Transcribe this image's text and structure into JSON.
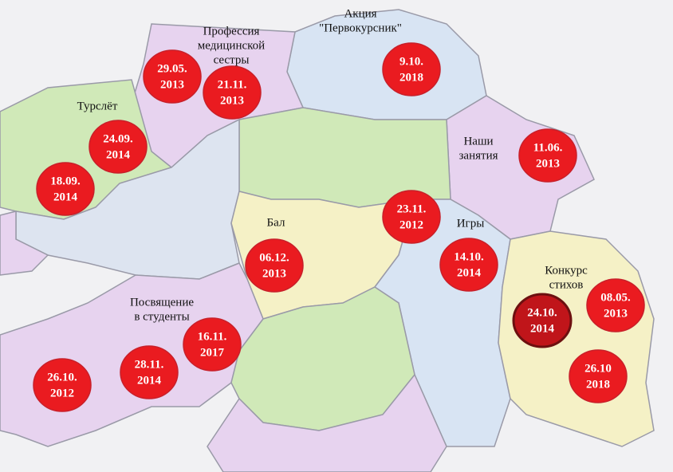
{
  "regions": [
    {
      "label": [
        "Акция",
        "\"Первокурсник\""
      ],
      "dates": [
        [
          "9.10.",
          "2018"
        ]
      ]
    },
    {
      "label": [
        "Профессия",
        "медицинской",
        "сестры"
      ],
      "dates": [
        [
          "29.05.",
          "2013"
        ],
        [
          "21.11.",
          "2013"
        ]
      ]
    },
    {
      "label": [
        "Турслёт"
      ],
      "dates": [
        [
          "24.09.",
          "2014"
        ],
        [
          "18.09.",
          "2014"
        ]
      ]
    },
    {
      "label": [
        "Наши",
        "занятия"
      ],
      "dates": [
        [
          "11.06.",
          "2013"
        ]
      ]
    },
    {
      "label": [
        "Бал"
      ],
      "dates": [
        [
          "06.12.",
          "2013"
        ],
        [
          "23.11.",
          "2012"
        ]
      ]
    },
    {
      "label": [
        "Игры"
      ],
      "dates": [
        [
          "14.10.",
          "2014"
        ]
      ]
    },
    {
      "label": [
        "Конкурс",
        "стихов"
      ],
      "dates": [
        [
          "24.10.",
          "2014"
        ],
        [
          "08.05.",
          "2013"
        ],
        [
          "26.10",
          "2018"
        ]
      ]
    },
    {
      "label": [
        "Посвящение",
        "в студенты"
      ],
      "dates": [
        [
          "16.11.",
          "2017"
        ],
        [
          "28.11.",
          "2014"
        ],
        [
          "26.10.",
          "2012"
        ]
      ]
    }
  ]
}
